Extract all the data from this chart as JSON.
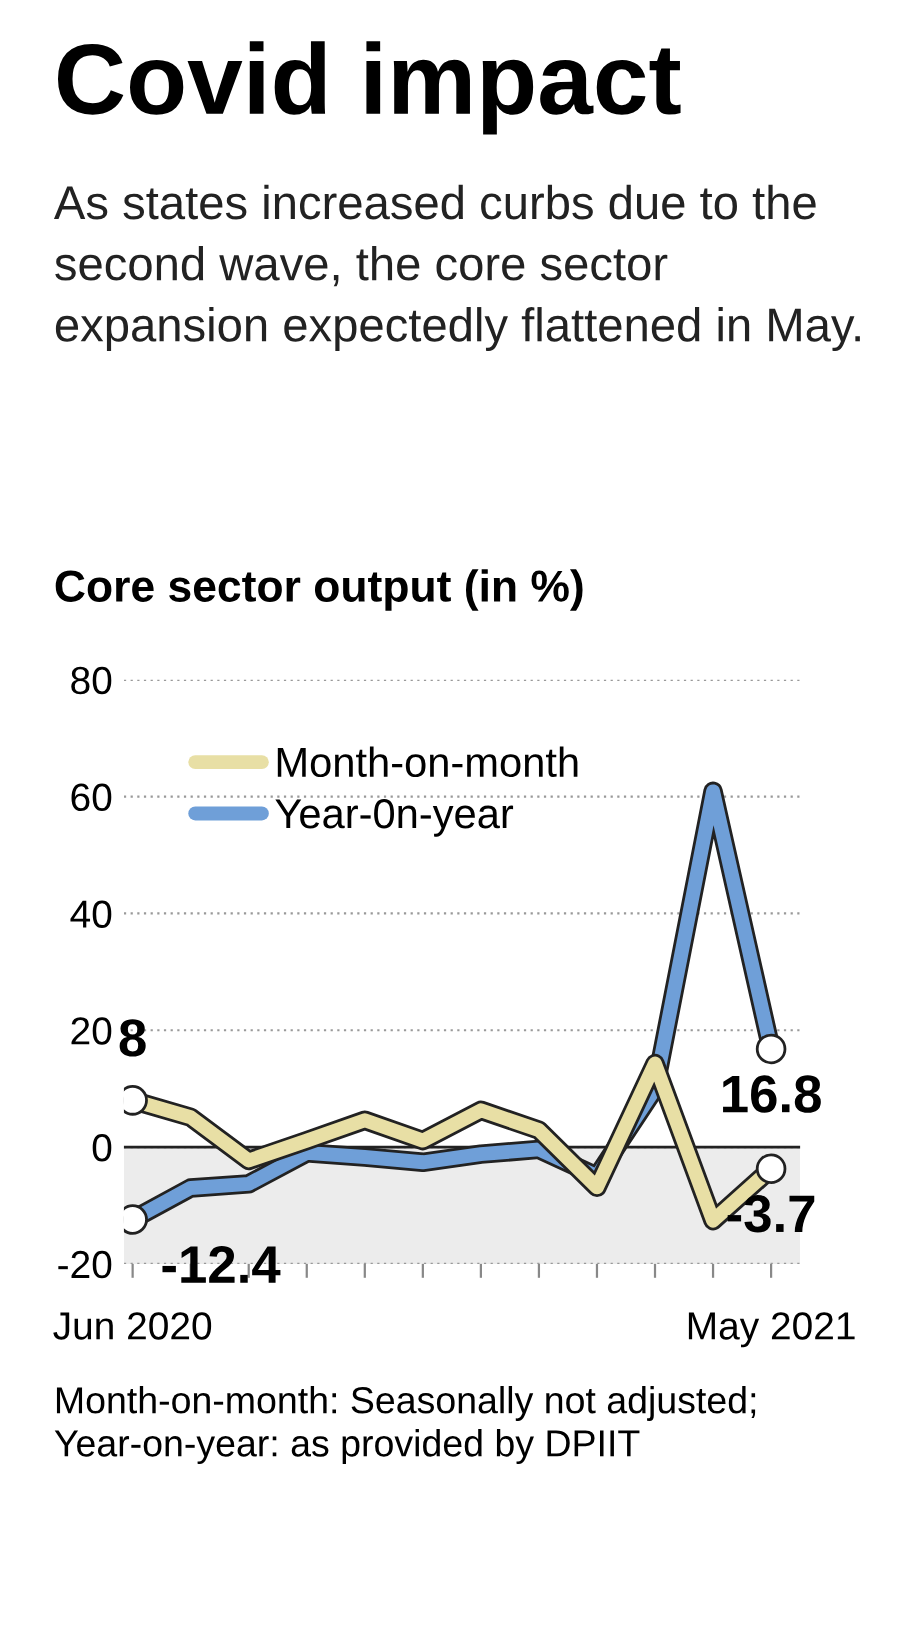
{
  "chart_data": {
    "type": "line",
    "title": "Covid impact",
    "subtitle": "As states increased curbs due to the second wave, the core sector expansion expectedly flattened in May.",
    "ylabel": "Core sector output (in %)",
    "categories": [
      "Jun 2020",
      null,
      null,
      null,
      null,
      null,
      null,
      null,
      null,
      null,
      null,
      "May 2021"
    ],
    "series": [
      {
        "name": "Month-on-month",
        "color": "#e8dfa5",
        "values": [
          8,
          5.1,
          -2.3,
          1.1,
          4.6,
          1.1,
          6.3,
          2.9,
          -6.9,
          14.3,
          -12.6,
          -3.7
        ],
        "value_labels": [
          "8",
          null,
          null,
          null,
          null,
          null,
          null,
          null,
          null,
          null,
          null,
          "-3.7"
        ]
      },
      {
        "name": "Year-0n-year",
        "color": "#6f9fd8",
        "values": [
          -12.4,
          -7.0,
          -6.3,
          -1.0,
          -1.7,
          -2.6,
          -1.2,
          -0.4,
          -5.0,
          10.0,
          60.9,
          16.8
        ],
        "value_labels": [
          "-12.4",
          null,
          null,
          null,
          null,
          null,
          null,
          null,
          null,
          null,
          null,
          "16.8"
        ]
      }
    ],
    "ylim": [
      -20,
      80
    ],
    "yticks": [
      -20,
      0,
      20,
      40,
      60,
      80
    ],
    "grid": "y",
    "legend": "top left",
    "bands": [
      {
        "axis": "y",
        "from": -20,
        "to": 0,
        "color": "#ececec"
      }
    ],
    "ref_lines": [
      {
        "axis": "y",
        "value": 0,
        "color": "#222222"
      }
    ],
    "annotations": [
      "Month-on-month: Seasonally not adjusted; Year-on-year: as provided by DPIIT"
    ]
  }
}
